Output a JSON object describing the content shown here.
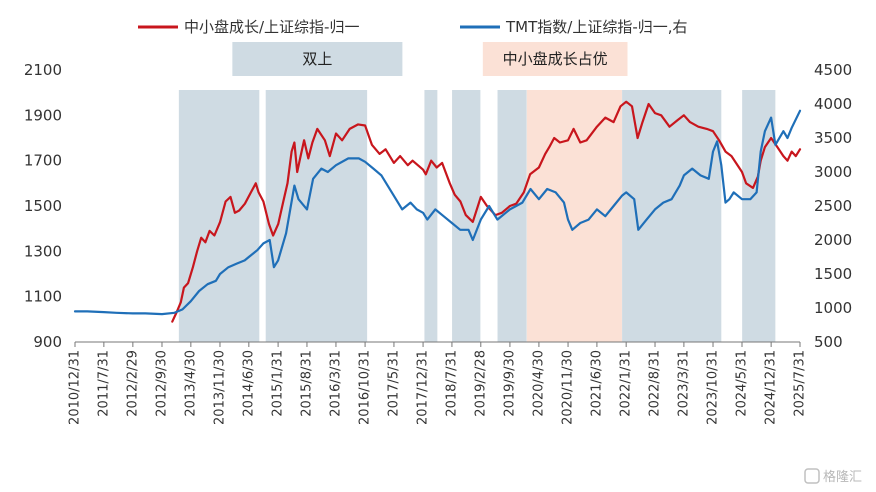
{
  "chart_data": {
    "type": "line",
    "title": "",
    "legend": {
      "placement": "top"
    },
    "left_axis": {
      "ylim": [
        900,
        2100
      ],
      "ticks": [
        900,
        1100,
        1300,
        1500,
        1700,
        1900,
        2100
      ]
    },
    "right_axis": {
      "ylim": [
        500,
        4500
      ],
      "ticks": [
        500,
        1000,
        1500,
        2000,
        2500,
        3000,
        3500,
        4000,
        4500
      ]
    },
    "x_tick_labels": [
      "2010/12/31",
      "2011/7/31",
      "2012/2/29",
      "2012/9/30",
      "2013/4/30",
      "2013/11/30",
      "2014/6/30",
      "2015/1/31",
      "2015/8/31",
      "2016/3/31",
      "2016/10/31",
      "2017/5/31",
      "2017/12/31",
      "2018/7/31",
      "2019/2/28",
      "2019/9/30",
      "2020/4/30",
      "2020/11/30",
      "2021/6/30",
      "2022/1/31",
      "2022/8/31",
      "2023/3/31",
      "2023/10/31",
      "2024/5/31",
      "2024/12/31",
      "2025/7/31"
    ],
    "shaded_regions": [
      {
        "start": "2013/2/1",
        "end": "2014/9/15",
        "color": "#cfdbe3"
      },
      {
        "start": "2014/11/1",
        "end": "2016/11/15",
        "color": "#cfdbe3"
      },
      {
        "start": "2018/1/10",
        "end": "2018/4/15",
        "color": "#cfdbe3"
      },
      {
        "start": "2018/8/1",
        "end": "2019/2/25",
        "color": "#cfdbe3"
      },
      {
        "start": "2019/7/1",
        "end": "2020/1/31",
        "color": "#cfdbe3"
      },
      {
        "start": "2020/2/1",
        "end": "2021/12/31",
        "color": "#fbe1d6"
      },
      {
        "start": "2022/1/1",
        "end": "2023/12/31",
        "color": "#cfdbe3"
      },
      {
        "start": "2024/6/1",
        "end": "2025/1/31",
        "color": "#cfdbe3"
      }
    ],
    "region_labels": [
      {
        "text": "双上",
        "start": "2014/3/1",
        "end": "2017/8/1",
        "color": "#cfdbe3"
      },
      {
        "text": "中小盘成长占优",
        "start": "2019/3/15",
        "end": "2022/2/10",
        "color": "#fbe1d6"
      }
    ],
    "series": [
      {
        "name": "中小盘成长/上证综指-归一",
        "axis": "left",
        "color": "#c8161d",
        "points": [
          [
            "2012/12/15",
            990
          ],
          [
            "2013/1/15",
            1030
          ],
          [
            "2013/2/15",
            1075
          ],
          [
            "2013/3/10",
            1140
          ],
          [
            "2013/4/10",
            1160
          ],
          [
            "2013/5/15",
            1230
          ],
          [
            "2013/6/15",
            1300
          ],
          [
            "2013/7/15",
            1360
          ],
          [
            "2013/8/15",
            1340
          ],
          [
            "2013/9/15",
            1390
          ],
          [
            "2013/10/20",
            1370
          ],
          [
            "2013/12/1",
            1430
          ],
          [
            "2014/1/10",
            1520
          ],
          [
            "2014/2/15",
            1540
          ],
          [
            "2014/3/20",
            1470
          ],
          [
            "2014/4/20",
            1480
          ],
          [
            "2014/6/1",
            1510
          ],
          [
            "2014/7/15",
            1560
          ],
          [
            "2014/8/20",
            1600
          ],
          [
            "2014/9/10",
            1560
          ],
          [
            "2014/10/15",
            1520
          ],
          [
            "2014/11/25",
            1420
          ],
          [
            "2014/12/25",
            1370
          ],
          [
            "2015/2/1",
            1420
          ],
          [
            "2015/3/10",
            1520
          ],
          [
            "2015/4/10",
            1600
          ],
          [
            "2015/5/10",
            1740
          ],
          [
            "2015/5/31",
            1780
          ],
          [
            "2015/6/20",
            1650
          ],
          [
            "2015/7/15",
            1720
          ],
          [
            "2015/8/10",
            1790
          ],
          [
            "2015/9/10",
            1710
          ],
          [
            "2015/10/10",
            1780
          ],
          [
            "2015/11/15",
            1840
          ],
          [
            "2016/1/10",
            1790
          ],
          [
            "2016/2/15",
            1720
          ],
          [
            "2016/3/31",
            1820
          ],
          [
            "2016/5/15",
            1790
          ],
          [
            "2016/7/10",
            1840
          ],
          [
            "2016/9/10",
            1860
          ],
          [
            "2016/10/31",
            1855
          ],
          [
            "2016/12/20",
            1770
          ],
          [
            "2017/2/15",
            1730
          ],
          [
            "2017/3/31",
            1750
          ],
          [
            "2017/5/31",
            1690
          ],
          [
            "2017/7/15",
            1720
          ],
          [
            "2017/9/10",
            1680
          ],
          [
            "2017/10/15",
            1700
          ],
          [
            "2017/12/31",
            1660
          ],
          [
            "2018/1/20",
            1640
          ],
          [
            "2018/3/1",
            1700
          ],
          [
            "2018/4/10",
            1670
          ],
          [
            "2018/5/20",
            1690
          ],
          [
            "2018/7/15",
            1600
          ],
          [
            "2018/8/20",
            1550
          ],
          [
            "2018/10/1",
            1520
          ],
          [
            "2018/11/10",
            1460
          ],
          [
            "2018/12/31",
            1430
          ],
          [
            "2019/2/28",
            1540
          ],
          [
            "2019/4/15",
            1500
          ],
          [
            "2019/6/15",
            1460
          ],
          [
            "2019/8/1",
            1470
          ],
          [
            "2019/9/30",
            1500
          ],
          [
            "2019/11/15",
            1510
          ],
          [
            "2020/1/10",
            1560
          ],
          [
            "2020/2/25",
            1640
          ],
          [
            "2020/4/30",
            1670
          ],
          [
            "2020/6/15",
            1730
          ],
          [
            "2020/7/15",
            1760
          ],
          [
            "2020/8/20",
            1800
          ],
          [
            "2020/10/1",
            1780
          ],
          [
            "2020/11/30",
            1790
          ],
          [
            "2021/1/10",
            1840
          ],
          [
            "2021/2/28",
            1780
          ],
          [
            "2021/4/15",
            1790
          ],
          [
            "2021/6/30",
            1850
          ],
          [
            "2021/8/31",
            1890
          ],
          [
            "2021/10/31",
            1870
          ],
          [
            "2021/12/20",
            1940
          ],
          [
            "2022/1/31",
            1960
          ],
          [
            "2022/3/15",
            1940
          ],
          [
            "2022/4/25",
            1800
          ],
          [
            "2022/5/31",
            1870
          ],
          [
            "2022/7/15",
            1950
          ],
          [
            "2022/8/31",
            1910
          ],
          [
            "2022/10/15",
            1900
          ],
          [
            "2022/12/15",
            1850
          ],
          [
            "2023/2/15",
            1880
          ],
          [
            "2023/3/31",
            1900
          ],
          [
            "2023/5/15",
            1870
          ],
          [
            "2023/7/15",
            1850
          ],
          [
            "2023/9/15",
            1840
          ],
          [
            "2023/10/31",
            1830
          ],
          [
            "2023/12/15",
            1790
          ],
          [
            "2024/1/31",
            1740
          ],
          [
            "2024/3/15",
            1720
          ],
          [
            "2024/5/31",
            1650
          ],
          [
            "2024/6/30",
            1600
          ],
          [
            "2024/8/20",
            1580
          ],
          [
            "2024/9/25",
            1630
          ],
          [
            "2024/10/15",
            1700
          ],
          [
            "2024/11/15",
            1760
          ],
          [
            "2024/12/31",
            1800
          ],
          [
            "2025/2/15",
            1760
          ],
          [
            "2025/3/31",
            1720
          ],
          [
            "2025/4/30",
            1700
          ],
          [
            "2025/5/31",
            1740
          ],
          [
            "2025/6/30",
            1720
          ],
          [
            "2025/7/31",
            1750
          ]
        ]
      },
      {
        "name": "TMT指数/上证综指-归一,右",
        "axis": "right",
        "color": "#1f6fb8",
        "points": [
          [
            "2010/12/31",
            950
          ],
          [
            "2011/3/31",
            950
          ],
          [
            "2011/7/31",
            940
          ],
          [
            "2011/10/31",
            930
          ],
          [
            "2012/2/29",
            920
          ],
          [
            "2012/5/31",
            920
          ],
          [
            "2012/9/30",
            910
          ],
          [
            "2012/12/31",
            930
          ],
          [
            "2013/2/28",
            980
          ],
          [
            "2013/4/30",
            1100
          ],
          [
            "2013/6/30",
            1250
          ],
          [
            "2013/8/31",
            1350
          ],
          [
            "2013/10/31",
            1400
          ],
          [
            "2013/11/30",
            1500
          ],
          [
            "2014/1/31",
            1600
          ],
          [
            "2014/3/31",
            1650
          ],
          [
            "2014/5/31",
            1700
          ],
          [
            "2014/6/30",
            1750
          ],
          [
            "2014/8/31",
            1850
          ],
          [
            "2014/10/15",
            1950
          ],
          [
            "2014/11/30",
            2000
          ],
          [
            "2014/12/31",
            1600
          ],
          [
            "2015/1/31",
            1700
          ],
          [
            "2015/3/31",
            2100
          ],
          [
            "2015/5/31",
            2800
          ],
          [
            "2015/6/30",
            2600
          ],
          [
            "2015/8/31",
            2450
          ],
          [
            "2015/10/15",
            2900
          ],
          [
            "2015/12/15",
            3050
          ],
          [
            "2016/1/31",
            3000
          ],
          [
            "2016/3/31",
            3100
          ],
          [
            "2016/6/30",
            3200
          ],
          [
            "2016/9/15",
            3200
          ],
          [
            "2016/10/31",
            3150
          ],
          [
            "2016/12/31",
            3050
          ],
          [
            "2017/2/28",
            2950
          ],
          [
            "2017/5/31",
            2650
          ],
          [
            "2017/7/31",
            2450
          ],
          [
            "2017/9/30",
            2550
          ],
          [
            "2017/11/15",
            2450
          ],
          [
            "2017/12/31",
            2400
          ],
          [
            "2018/1/31",
            2300
          ],
          [
            "2018/3/31",
            2450
          ],
          [
            "2018/5/31",
            2350
          ],
          [
            "2018/7/31",
            2250
          ],
          [
            "2018/9/30",
            2150
          ],
          [
            "2018/11/30",
            2150
          ],
          [
            "2018/12/31",
            2000
          ],
          [
            "2019/2/28",
            2300
          ],
          [
            "2019/4/30",
            2500
          ],
          [
            "2019/6/30",
            2300
          ],
          [
            "2019/9/30",
            2450
          ],
          [
            "2019/12/31",
            2550
          ],
          [
            "2020/2/28",
            2750
          ],
          [
            "2020/4/30",
            2600
          ],
          [
            "2020/6/30",
            2750
          ],
          [
            "2020/8/31",
            2700
          ],
          [
            "2020/10/31",
            2550
          ],
          [
            "2020/11/30",
            2300
          ],
          [
            "2020/12/31",
            2150
          ],
          [
            "2021/2/28",
            2250
          ],
          [
            "2021/4/30",
            2300
          ],
          [
            "2021/6/30",
            2450
          ],
          [
            "2021/8/31",
            2350
          ],
          [
            "2021/10/31",
            2500
          ],
          [
            "2021/12/31",
            2650
          ],
          [
            "2022/1/31",
            2700
          ],
          [
            "2022/3/31",
            2600
          ],
          [
            "2022/4/30",
            2150
          ],
          [
            "2022/6/30",
            2300
          ],
          [
            "2022/8/31",
            2450
          ],
          [
            "2022/10/31",
            2550
          ],
          [
            "2022/12/31",
            2600
          ],
          [
            "2023/2/28",
            2800
          ],
          [
            "2023/3/31",
            2950
          ],
          [
            "2023/5/31",
            3050
          ],
          [
            "2023/7/31",
            2950
          ],
          [
            "2023/9/30",
            2900
          ],
          [
            "2023/10/31",
            3300
          ],
          [
            "2023/11/30",
            3450
          ],
          [
            "2023/12/31",
            3100
          ],
          [
            "2024/1/31",
            2550
          ],
          [
            "2024/2/28",
            2600
          ],
          [
            "2024/3/31",
            2700
          ],
          [
            "2024/5/31",
            2600
          ],
          [
            "2024/7/31",
            2600
          ],
          [
            "2024/9/15",
            2700
          ],
          [
            "2024/10/15",
            3300
          ],
          [
            "2024/11/15",
            3600
          ],
          [
            "2024/12/31",
            3800
          ],
          [
            "2025/1/31",
            3400
          ],
          [
            "2025/3/31",
            3600
          ],
          [
            "2025/4/30",
            3500
          ],
          [
            "2025/5/31",
            3650
          ],
          [
            "2025/7/31",
            3900
          ]
        ]
      }
    ]
  },
  "watermark": "格隆汇"
}
